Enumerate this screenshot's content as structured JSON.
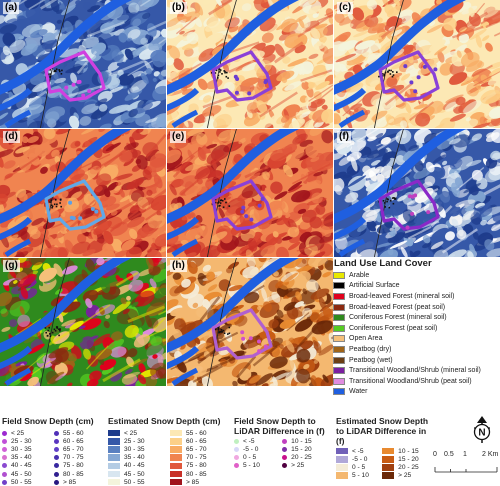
{
  "panels": [
    {
      "id": "a",
      "label": "(a)",
      "palette": "blue"
    },
    {
      "id": "b",
      "label": "(b)",
      "palette": "warm"
    },
    {
      "id": "c",
      "label": "(c)",
      "palette": "warm"
    },
    {
      "id": "d",
      "label": "(d)",
      "palette": "red"
    },
    {
      "id": "e",
      "label": "(e)",
      "palette": "red"
    },
    {
      "id": "f",
      "label": "(f)",
      "palette": "bluewhite"
    },
    {
      "id": "g",
      "label": "(g)",
      "palette": "landuse"
    },
    {
      "id": "h",
      "label": "(h)",
      "palette": "brown"
    }
  ],
  "land_use": {
    "title": "Land Use Land Cover",
    "items": [
      {
        "label": "Arable",
        "color": "#e8e800"
      },
      {
        "label": "Artificial Surface",
        "color": "#000000"
      },
      {
        "label": "Broad-leaved Forest (mineral soil)",
        "color": "#e0001c"
      },
      {
        "label": "Broad-leaved Forest (peat soil)",
        "color": "#8b2a10"
      },
      {
        "label": "Coniferous Forest (mineral soil)",
        "color": "#2f8a1e"
      },
      {
        "label": "Coniferous Forest (peat soil)",
        "color": "#55cc22"
      },
      {
        "label": "Open Area",
        "color": "#f5c07a"
      },
      {
        "label": "Peatbog (dry)",
        "color": "#a06418"
      },
      {
        "label": "Peatbog (wet)",
        "color": "#6b3e14"
      },
      {
        "label": "Transitional Woodland/Shrub (mineral soil)",
        "color": "#7a1fa0"
      },
      {
        "label": "Transitional Woodland/Shrub (peat soil)",
        "color": "#e08ce0"
      },
      {
        "label": "Water",
        "color": "#1f5fe0"
      }
    ]
  },
  "legend_field": {
    "title": "Field Snow Depth (cm)",
    "items": [
      {
        "label": "< 25",
        "color": "#9c2ad0"
      },
      {
        "label": "25 - 30",
        "color": "#c050d8"
      },
      {
        "label": "30 - 35",
        "color": "#d060d8"
      },
      {
        "label": "35 - 40",
        "color": "#d870d0"
      },
      {
        "label": "40 - 45",
        "color": "#8a4ad0"
      },
      {
        "label": "45 - 50",
        "color": "#b050d0"
      },
      {
        "label": "50 - 55",
        "color": "#7040c8"
      },
      {
        "label": "55 - 60",
        "color": "#5030b8"
      },
      {
        "label": "60 - 65",
        "color": "#5a36c0"
      },
      {
        "label": "65 - 70",
        "color": "#6040c8"
      },
      {
        "label": "70 - 75",
        "color": "#4830b0"
      },
      {
        "label": "75 - 80",
        "color": "#3828a0"
      },
      {
        "label": "80 - 85",
        "color": "#302090"
      },
      {
        "label": "> 85",
        "color": "#281880"
      }
    ]
  },
  "legend_estimated": {
    "title": "Estimated Snow Depth (cm)",
    "items": [
      {
        "label": "< 25",
        "color": "#1e3c8c"
      },
      {
        "label": "25 - 30",
        "color": "#3658a8"
      },
      {
        "label": "30 - 35",
        "color": "#5a80c0"
      },
      {
        "label": "35 - 40",
        "color": "#86a8d4"
      },
      {
        "label": "40 - 45",
        "color": "#b4cce4"
      },
      {
        "label": "45 - 50",
        "color": "#d8e6f0"
      },
      {
        "label": "50 - 55",
        "color": "#f4f4dc"
      },
      {
        "label": "55 - 60",
        "color": "#fce8b4"
      },
      {
        "label": "60 - 65",
        "color": "#fcd088"
      },
      {
        "label": "65 - 70",
        "color": "#f8ac64"
      },
      {
        "label": "70 - 75",
        "color": "#f08450"
      },
      {
        "label": "75 - 80",
        "color": "#e0583c"
      },
      {
        "label": "80 - 85",
        "color": "#c83028"
      },
      {
        "label": "> 85",
        "color": "#a0141c"
      }
    ]
  },
  "legend_field_diff": {
    "title": "Field Snow Depth to LiDAR Difference in (f)",
    "items": [
      {
        "label": "< -5",
        "color": "#c0f0c0"
      },
      {
        "label": "-5 - 0",
        "color": "#d8d8f8"
      },
      {
        "label": "0 - 5",
        "color": "#f0a8e0"
      },
      {
        "label": "5 - 10",
        "color": "#e060c8"
      },
      {
        "label": "10 - 15",
        "color": "#c040c0"
      },
      {
        "label": "15 - 20",
        "color": "#8030a8"
      },
      {
        "label": "20 - 25",
        "color": "#c8108c"
      },
      {
        "label": "> 25",
        "color": "#500040"
      }
    ]
  },
  "legend_est_diff": {
    "title": "Estimated Snow Depth to LiDAR Difference in (f)",
    "items": [
      {
        "label": "< -5",
        "color": "#7060b8"
      },
      {
        "label": "-5 - 0",
        "color": "#b0a8d8"
      },
      {
        "label": "0 - 5",
        "color": "#f4ecd8"
      },
      {
        "label": "5 - 10",
        "color": "#f4b870"
      },
      {
        "label": "10 - 15",
        "color": "#e88a30"
      },
      {
        "label": "15 - 20",
        "color": "#c85c14"
      },
      {
        "label": "20 - 25",
        "color": "#a04010"
      },
      {
        "label": "> 25",
        "color": "#6a2808"
      }
    ]
  },
  "north": {
    "letter": "N"
  },
  "scale": {
    "ticks": [
      "0",
      "0.5",
      "1",
      "2 Km"
    ]
  }
}
